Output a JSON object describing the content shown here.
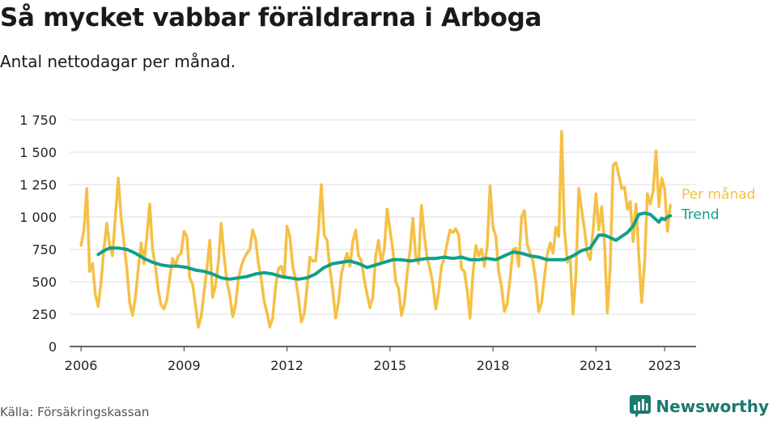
{
  "header": {
    "title": "Så mycket vabbar föräldrarna i Arboga",
    "subtitle": "Antal nettodagar per månad."
  },
  "footer": {
    "source": "Källa: Försäkringskassan",
    "brand": "Newsworthy",
    "brand_color": "#1a7a6e"
  },
  "chart_data": {
    "type": "line",
    "title": "Så mycket vabbar föräldrarna i Arboga",
    "subtitle": "Antal nettodagar per månad.",
    "xlabel": "",
    "ylabel": "",
    "ylim": [
      0,
      1750
    ],
    "xlim": [
      "2005-09",
      "2023-12"
    ],
    "y_ticks": [
      0,
      250,
      500,
      750,
      1000,
      1250,
      1500,
      1750
    ],
    "y_tick_labels": [
      "0",
      "250",
      "500",
      "750",
      "1 000",
      "1 250",
      "1 500",
      "1 750"
    ],
    "x_ticks": [
      "2006-01",
      "2009-01",
      "2012-01",
      "2015-01",
      "2018-01",
      "2021-01",
      "2023-01"
    ],
    "x_tick_labels": [
      "2006",
      "2009",
      "2012",
      "2015",
      "2018",
      "2021",
      "2023"
    ],
    "grid": "horizontal",
    "legend": "inline labels at right end of lines",
    "series": [
      {
        "name": "Per månad",
        "color": "#f5c045",
        "points": [
          [
            "2006-01",
            780
          ],
          [
            "2006-02",
            900
          ],
          [
            "2006-03",
            1220
          ],
          [
            "2006-04",
            580
          ],
          [
            "2006-05",
            640
          ],
          [
            "2006-06",
            400
          ],
          [
            "2006-07",
            310
          ],
          [
            "2006-08",
            500
          ],
          [
            "2006-09",
            750
          ],
          [
            "2006-10",
            950
          ],
          [
            "2006-11",
            780
          ],
          [
            "2006-12",
            700
          ],
          [
            "2007-01",
            1000
          ],
          [
            "2007-02",
            1300
          ],
          [
            "2007-03",
            1000
          ],
          [
            "2007-04",
            800
          ],
          [
            "2007-05",
            600
          ],
          [
            "2007-06",
            340
          ],
          [
            "2007-07",
            240
          ],
          [
            "2007-08",
            380
          ],
          [
            "2007-09",
            600
          ],
          [
            "2007-10",
            800
          ],
          [
            "2007-11",
            640
          ],
          [
            "2007-12",
            850
          ],
          [
            "2008-01",
            1100
          ],
          [
            "2008-02",
            750
          ],
          [
            "2008-03",
            620
          ],
          [
            "2008-04",
            430
          ],
          [
            "2008-05",
            320
          ],
          [
            "2008-06",
            290
          ],
          [
            "2008-07",
            360
          ],
          [
            "2008-08",
            530
          ],
          [
            "2008-09",
            680
          ],
          [
            "2008-10",
            630
          ],
          [
            "2008-11",
            700
          ],
          [
            "2008-12",
            720
          ],
          [
            "2009-01",
            890
          ],
          [
            "2009-02",
            850
          ],
          [
            "2009-03",
            530
          ],
          [
            "2009-04",
            480
          ],
          [
            "2009-05",
            320
          ],
          [
            "2009-06",
            150
          ],
          [
            "2009-07",
            230
          ],
          [
            "2009-08",
            420
          ],
          [
            "2009-09",
            600
          ],
          [
            "2009-10",
            820
          ],
          [
            "2009-11",
            380
          ],
          [
            "2009-12",
            470
          ],
          [
            "2010-01",
            650
          ],
          [
            "2010-02",
            950
          ],
          [
            "2010-03",
            700
          ],
          [
            "2010-04",
            500
          ],
          [
            "2010-05",
            400
          ],
          [
            "2010-06",
            230
          ],
          [
            "2010-07",
            320
          ],
          [
            "2010-08",
            520
          ],
          [
            "2010-09",
            620
          ],
          [
            "2010-10",
            680
          ],
          [
            "2010-11",
            720
          ],
          [
            "2010-12",
            750
          ],
          [
            "2011-01",
            900
          ],
          [
            "2011-02",
            830
          ],
          [
            "2011-03",
            640
          ],
          [
            "2011-04",
            520
          ],
          [
            "2011-05",
            350
          ],
          [
            "2011-06",
            260
          ],
          [
            "2011-07",
            150
          ],
          [
            "2011-08",
            220
          ],
          [
            "2011-09",
            460
          ],
          [
            "2011-10",
            600
          ],
          [
            "2011-11",
            620
          ],
          [
            "2011-12",
            530
          ],
          [
            "2012-01",
            930
          ],
          [
            "2012-02",
            850
          ],
          [
            "2012-03",
            620
          ],
          [
            "2012-04",
            520
          ],
          [
            "2012-05",
            380
          ],
          [
            "2012-06",
            190
          ],
          [
            "2012-07",
            250
          ],
          [
            "2012-08",
            450
          ],
          [
            "2012-09",
            690
          ],
          [
            "2012-10",
            660
          ],
          [
            "2012-11",
            660
          ],
          [
            "2012-12",
            900
          ],
          [
            "2013-01",
            1250
          ],
          [
            "2013-02",
            860
          ],
          [
            "2013-03",
            820
          ],
          [
            "2013-04",
            600
          ],
          [
            "2013-05",
            430
          ],
          [
            "2013-06",
            220
          ],
          [
            "2013-07",
            340
          ],
          [
            "2013-08",
            560
          ],
          [
            "2013-09",
            650
          ],
          [
            "2013-10",
            720
          ],
          [
            "2013-11",
            620
          ],
          [
            "2013-12",
            810
          ],
          [
            "2014-01",
            900
          ],
          [
            "2014-02",
            700
          ],
          [
            "2014-03",
            660
          ],
          [
            "2014-04",
            520
          ],
          [
            "2014-05",
            400
          ],
          [
            "2014-06",
            300
          ],
          [
            "2014-07",
            380
          ],
          [
            "2014-08",
            700
          ],
          [
            "2014-09",
            820
          ],
          [
            "2014-10",
            650
          ],
          [
            "2014-11",
            750
          ],
          [
            "2014-12",
            1060
          ],
          [
            "2015-01",
            900
          ],
          [
            "2015-02",
            750
          ],
          [
            "2015-03",
            500
          ],
          [
            "2015-04",
            450
          ],
          [
            "2015-05",
            240
          ],
          [
            "2015-06",
            330
          ],
          [
            "2015-07",
            560
          ],
          [
            "2015-08",
            740
          ],
          [
            "2015-09",
            990
          ],
          [
            "2015-10",
            700
          ],
          [
            "2015-11",
            640
          ],
          [
            "2015-12",
            1090
          ],
          [
            "2016-01",
            860
          ],
          [
            "2016-02",
            680
          ],
          [
            "2016-03",
            600
          ],
          [
            "2016-04",
            480
          ],
          [
            "2016-05",
            290
          ],
          [
            "2016-06",
            420
          ],
          [
            "2016-07",
            620
          ],
          [
            "2016-08",
            680
          ],
          [
            "2016-09",
            800
          ],
          [
            "2016-10",
            900
          ],
          [
            "2016-11",
            880
          ],
          [
            "2016-12",
            910
          ],
          [
            "2017-01",
            860
          ],
          [
            "2017-02",
            600
          ],
          [
            "2017-03",
            580
          ],
          [
            "2017-04",
            430
          ],
          [
            "2017-05",
            220
          ],
          [
            "2017-06",
            560
          ],
          [
            "2017-07",
            780
          ],
          [
            "2017-08",
            700
          ],
          [
            "2017-09",
            750
          ],
          [
            "2017-10",
            620
          ],
          [
            "2017-11",
            780
          ],
          [
            "2017-12",
            1240
          ],
          [
            "2018-01",
            920
          ],
          [
            "2018-02",
            850
          ],
          [
            "2018-03",
            580
          ],
          [
            "2018-04",
            460
          ],
          [
            "2018-05",
            270
          ],
          [
            "2018-06",
            330
          ],
          [
            "2018-07",
            530
          ],
          [
            "2018-08",
            750
          ],
          [
            "2018-09",
            760
          ],
          [
            "2018-10",
            620
          ],
          [
            "2018-11",
            1000
          ],
          [
            "2018-12",
            1050
          ],
          [
            "2019-01",
            790
          ],
          [
            "2019-02",
            720
          ],
          [
            "2019-03",
            660
          ],
          [
            "2019-04",
            500
          ],
          [
            "2019-05",
            270
          ],
          [
            "2019-06",
            340
          ],
          [
            "2019-07",
            540
          ],
          [
            "2019-08",
            710
          ],
          [
            "2019-09",
            800
          ],
          [
            "2019-10",
            720
          ],
          [
            "2019-11",
            920
          ],
          [
            "2019-12",
            850
          ],
          [
            "2020-01",
            1660
          ],
          [
            "2020-02",
            900
          ],
          [
            "2020-03",
            650
          ],
          [
            "2020-04",
            680
          ],
          [
            "2020-05",
            250
          ],
          [
            "2020-06",
            560
          ],
          [
            "2020-07",
            1220
          ],
          [
            "2020-08",
            1060
          ],
          [
            "2020-09",
            900
          ],
          [
            "2020-10",
            720
          ],
          [
            "2020-11",
            670
          ],
          [
            "2020-12",
            900
          ],
          [
            "2021-01",
            1180
          ],
          [
            "2021-02",
            900
          ],
          [
            "2021-03",
            1080
          ],
          [
            "2021-04",
            800
          ],
          [
            "2021-05",
            260
          ],
          [
            "2021-06",
            620
          ],
          [
            "2021-07",
            1400
          ],
          [
            "2021-08",
            1420
          ],
          [
            "2021-09",
            1320
          ],
          [
            "2021-10",
            1220
          ],
          [
            "2021-11",
            1230
          ],
          [
            "2021-12",
            1060
          ],
          [
            "2022-01",
            1120
          ],
          [
            "2022-02",
            810
          ],
          [
            "2022-03",
            1100
          ],
          [
            "2022-04",
            700
          ],
          [
            "2022-05",
            340
          ],
          [
            "2022-06",
            650
          ],
          [
            "2022-07",
            1180
          ],
          [
            "2022-08",
            1100
          ],
          [
            "2022-09",
            1200
          ],
          [
            "2022-10",
            1510
          ],
          [
            "2022-11",
            1080
          ],
          [
            "2022-12",
            1300
          ],
          [
            "2023-01",
            1220
          ],
          [
            "2023-02",
            890
          ],
          [
            "2023-03",
            1090
          ]
        ]
      },
      {
        "name": "Trend",
        "color": "#11a08a",
        "points": [
          [
            "2006-07",
            710
          ],
          [
            "2006-09",
            740
          ],
          [
            "2006-11",
            760
          ],
          [
            "2007-02",
            760
          ],
          [
            "2007-05",
            750
          ],
          [
            "2007-08",
            720
          ],
          [
            "2007-11",
            680
          ],
          [
            "2008-02",
            650
          ],
          [
            "2008-05",
            630
          ],
          [
            "2008-08",
            620
          ],
          [
            "2008-11",
            620
          ],
          [
            "2009-02",
            610
          ],
          [
            "2009-05",
            590
          ],
          [
            "2009-08",
            580
          ],
          [
            "2009-11",
            560
          ],
          [
            "2010-02",
            530
          ],
          [
            "2010-05",
            520
          ],
          [
            "2010-08",
            530
          ],
          [
            "2010-11",
            540
          ],
          [
            "2011-02",
            560
          ],
          [
            "2011-05",
            570
          ],
          [
            "2011-08",
            560
          ],
          [
            "2011-11",
            540
          ],
          [
            "2012-02",
            530
          ],
          [
            "2012-05",
            520
          ],
          [
            "2012-08",
            530
          ],
          [
            "2012-11",
            560
          ],
          [
            "2013-02",
            610
          ],
          [
            "2013-05",
            640
          ],
          [
            "2013-08",
            650
          ],
          [
            "2013-11",
            660
          ],
          [
            "2014-02",
            640
          ],
          [
            "2014-05",
            610
          ],
          [
            "2014-08",
            630
          ],
          [
            "2014-11",
            650
          ],
          [
            "2015-02",
            670
          ],
          [
            "2015-05",
            670
          ],
          [
            "2015-08",
            660
          ],
          [
            "2015-11",
            670
          ],
          [
            "2016-02",
            680
          ],
          [
            "2016-05",
            680
          ],
          [
            "2016-08",
            690
          ],
          [
            "2016-11",
            680
          ],
          [
            "2017-02",
            690
          ],
          [
            "2017-05",
            670
          ],
          [
            "2017-08",
            670
          ],
          [
            "2017-11",
            680
          ],
          [
            "2018-02",
            670
          ],
          [
            "2018-05",
            700
          ],
          [
            "2018-08",
            730
          ],
          [
            "2018-11",
            720
          ],
          [
            "2019-02",
            700
          ],
          [
            "2019-05",
            690
          ],
          [
            "2019-08",
            670
          ],
          [
            "2019-11",
            670
          ],
          [
            "2020-02",
            670
          ],
          [
            "2020-05",
            700
          ],
          [
            "2020-08",
            740
          ],
          [
            "2020-11",
            760
          ],
          [
            "2021-02",
            860
          ],
          [
            "2021-04",
            860
          ],
          [
            "2021-06",
            840
          ],
          [
            "2021-08",
            820
          ],
          [
            "2021-10",
            850
          ],
          [
            "2021-12",
            880
          ],
          [
            "2022-02",
            930
          ],
          [
            "2022-04",
            1020
          ],
          [
            "2022-06",
            1030
          ],
          [
            "2022-08",
            1020
          ],
          [
            "2022-10",
            980
          ],
          [
            "2022-11",
            960
          ],
          [
            "2022-12",
            990
          ],
          [
            "2023-01",
            980
          ],
          [
            "2023-02",
            1000
          ],
          [
            "2023-03",
            1010
          ]
        ]
      }
    ]
  }
}
